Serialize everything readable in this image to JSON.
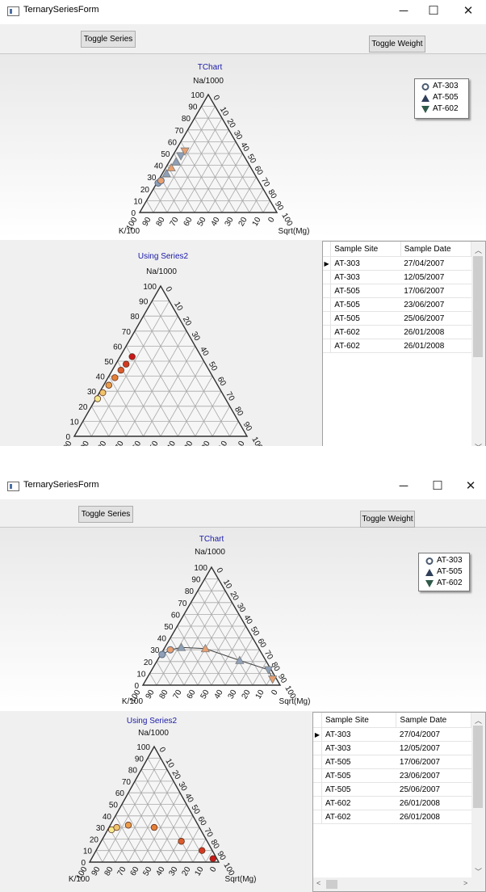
{
  "window": {
    "title": "TernarySeriesForm",
    "minimize_glyph": "─",
    "maximize_glyph": "☐",
    "close_glyph": "✕"
  },
  "toolbar": {
    "toggle_series_label": "Toggle Series",
    "toggle_weight_label": "Toggle Weight"
  },
  "grid": {
    "columns": [
      "Sample Site",
      "Sample Date"
    ],
    "current_row_glyph": "▶",
    "rows": [
      [
        "AT-303",
        "27/04/2007"
      ],
      [
        "AT-303",
        "12/05/2007"
      ],
      [
        "AT-505",
        "17/06/2007"
      ],
      [
        "AT-505",
        "23/06/2007"
      ],
      [
        "AT-505",
        "25/06/2007"
      ],
      [
        "AT-602",
        "26/01/2008"
      ],
      [
        "AT-602",
        "26/01/2008"
      ]
    ]
  },
  "legend_items": [
    {
      "label": "AT-303",
      "icon": "circle-marker-icon",
      "color": "#4a5a70"
    },
    {
      "label": "AT-505",
      "icon": "triangle-up-marker-icon",
      "color": "#2f3f5a"
    },
    {
      "label": "AT-602",
      "icon": "triangle-down-marker-icon",
      "color": "#2f5a4a"
    }
  ],
  "colors": {
    "title_blue": "#1a1aa8",
    "grid_line": "#a8a8a8",
    "marker_gray": "#8fa0b8",
    "marker_orange": "#e8a070",
    "heat_low": "#f4ea8c",
    "heat_mid": "#e88a3a",
    "heat_high": "#c81818"
  },
  "chart_data": [
    {
      "type": "ternary-scatter",
      "title": "TChart",
      "top_axis_label": "Na/1000",
      "left_axis_label": "K/100",
      "right_axis_label": "Sqrt(Mg)",
      "ticks": [
        "0",
        "10",
        "20",
        "30",
        "40",
        "50",
        "60",
        "70",
        "80",
        "90",
        "100"
      ],
      "series": [
        {
          "name": "AT-303",
          "points": [
            {
              "na": 25,
              "mg": 1
            },
            {
              "na": 27,
              "mg": 2
            }
          ]
        },
        {
          "name": "AT-505",
          "points": [
            {
              "na": 33,
              "mg": 3
            },
            {
              "na": 38,
              "mg": 4
            },
            {
              "na": 43,
              "mg": 5
            }
          ]
        },
        {
          "name": "AT-602",
          "points": [
            {
              "na": 48,
              "mg": 6
            },
            {
              "na": 52,
              "mg": 7
            }
          ]
        }
      ]
    },
    {
      "type": "ternary-scatter",
      "title": "Using Series2",
      "top_axis_label": "Na/1000",
      "left_axis_label": "K/100",
      "right_axis_label": "Sqrt(Mg)",
      "ticks": [
        "0",
        "10",
        "20",
        "30",
        "40",
        "50",
        "60",
        "70",
        "80",
        "90",
        "100"
      ],
      "points": [
        {
          "na": 25,
          "mg": 1,
          "weight": 0.0
        },
        {
          "na": 29,
          "mg": 2,
          "weight": 0.2
        },
        {
          "na": 34,
          "mg": 3,
          "weight": 0.4
        },
        {
          "na": 39,
          "mg": 4,
          "weight": 0.55
        },
        {
          "na": 44,
          "mg": 5,
          "weight": 0.7
        },
        {
          "na": 48,
          "mg": 6,
          "weight": 0.85
        },
        {
          "na": 53,
          "mg": 7,
          "weight": 1.0
        }
      ]
    },
    {
      "type": "ternary-scatter",
      "title": "TChart",
      "top_axis_label": "Na/1000",
      "left_axis_label": "K/100",
      "right_axis_label": "Sqrt(Mg)",
      "ticks": [
        "0",
        "10",
        "20",
        "30",
        "40",
        "50",
        "60",
        "70",
        "80",
        "90",
        "100"
      ],
      "connect_points": true,
      "series": [
        {
          "name": "AT-303",
          "points": [
            {
              "na": 26,
              "mg": 1
            },
            {
              "na": 30,
              "mg": 5
            }
          ]
        },
        {
          "name": "AT-505",
          "points": [
            {
              "na": 32,
              "mg": 12
            },
            {
              "na": 31,
              "mg": 30
            },
            {
              "na": 21,
              "mg": 60
            }
          ]
        },
        {
          "name": "AT-602",
          "points": [
            {
              "na": 13,
              "mg": 85
            },
            {
              "na": 5,
              "mg": 92
            }
          ]
        }
      ]
    },
    {
      "type": "ternary-scatter",
      "title": "Using Series2",
      "top_axis_label": "Na/1000",
      "left_axis_label": "K/100",
      "right_axis_label": "Sqrt(Mg)",
      "ticks": [
        "0",
        "10",
        "20",
        "30",
        "40",
        "50",
        "60",
        "70",
        "80",
        "90",
        "100"
      ],
      "points": [
        {
          "na": 28,
          "mg": 3,
          "weight": 0.0
        },
        {
          "na": 30,
          "mg": 6,
          "weight": 0.2
        },
        {
          "na": 32,
          "mg": 14,
          "weight": 0.4
        },
        {
          "na": 30,
          "mg": 35,
          "weight": 0.55
        },
        {
          "na": 18,
          "mg": 62,
          "weight": 0.7
        },
        {
          "na": 10,
          "mg": 82,
          "weight": 0.85
        },
        {
          "na": 3,
          "mg": 94,
          "weight": 1.0
        }
      ]
    }
  ]
}
